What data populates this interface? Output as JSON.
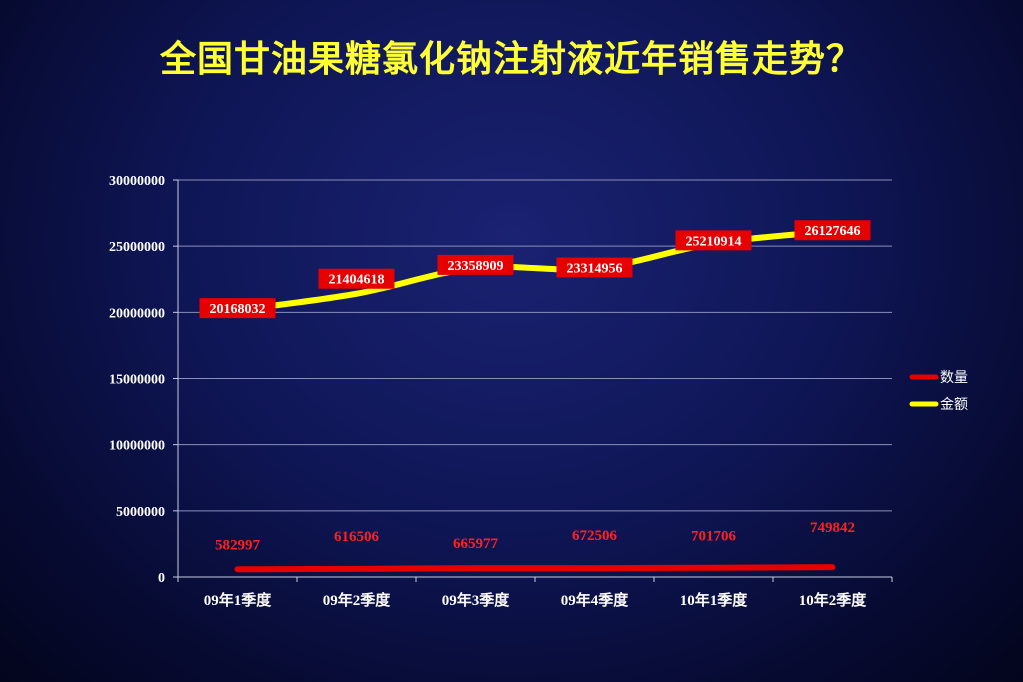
{
  "slide": {
    "title": "全国甘油果糖氯化钠注射液近年销售走势？"
  },
  "colors": {
    "background": "#0f1656",
    "title": "#ffff33",
    "amount_line": "#ffff00",
    "quantity_line": "#e60000",
    "amount_label_bg": "#e60000",
    "amount_label_text": "#ffffff",
    "quantity_label_text": "#ff2020"
  },
  "chart_data": {
    "type": "line",
    "categories": [
      "09年1季度",
      "09年2季度",
      "09年3季度",
      "09年4季度",
      "10年1季度",
      "10年2季度"
    ],
    "ylim": [
      0,
      30000000
    ],
    "yticks": [
      0,
      5000000,
      10000000,
      15000000,
      20000000,
      25000000,
      30000000
    ],
    "ytick_labels": [
      "0",
      "5000000",
      "10000000",
      "15000000",
      "20000000",
      "25000000",
      "30000000"
    ],
    "grid": true,
    "legend_position": "right",
    "series": [
      {
        "name": "数量",
        "color": "#e60000",
        "values": [
          582997,
          616506,
          665977,
          672506,
          701706,
          749842
        ],
        "labels": [
          "582997",
          "616506",
          "665977",
          "672506",
          "701706",
          "749842"
        ]
      },
      {
        "name": "金额",
        "color": "#ffff00",
        "values": [
          20168032,
          21404618,
          23358909,
          23314956,
          25210914,
          26127646
        ],
        "labels": [
          "20168032",
          "21404618",
          "23358909",
          "23314956",
          "25210914",
          "26127646"
        ]
      }
    ]
  }
}
